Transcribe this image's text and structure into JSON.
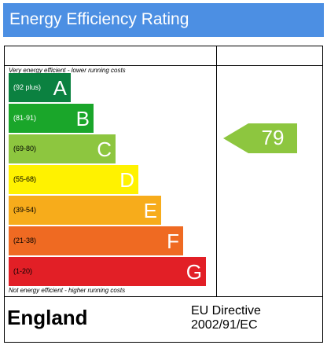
{
  "header": {
    "title": "Energy Efficiency Rating"
  },
  "captions": {
    "top": "Very energy efficient - lower running costs",
    "bottom": "Not energy efficient - higher running costs"
  },
  "bands": [
    {
      "range": "(92 plus)",
      "letter": "A",
      "color": "#0b8140"
    },
    {
      "range": "(81-91)",
      "letter": "B",
      "color": "#1aa62a"
    },
    {
      "range": "(69-80)",
      "letter": "C",
      "color": "#8dc63f"
    },
    {
      "range": "(55-68)",
      "letter": "D",
      "color": "#fff200"
    },
    {
      "range": "(39-54)",
      "letter": "E",
      "color": "#f7ac1b"
    },
    {
      "range": "(21-38)",
      "letter": "F",
      "color": "#ef6a22"
    },
    {
      "range": "(1-20)",
      "letter": "G",
      "color": "#e21f26"
    }
  ],
  "current": {
    "value": "79",
    "color": "#8dc63f"
  },
  "footer": {
    "country": "England",
    "directive_line1": "EU Directive",
    "directive_line2": "2002/91/EC"
  }
}
